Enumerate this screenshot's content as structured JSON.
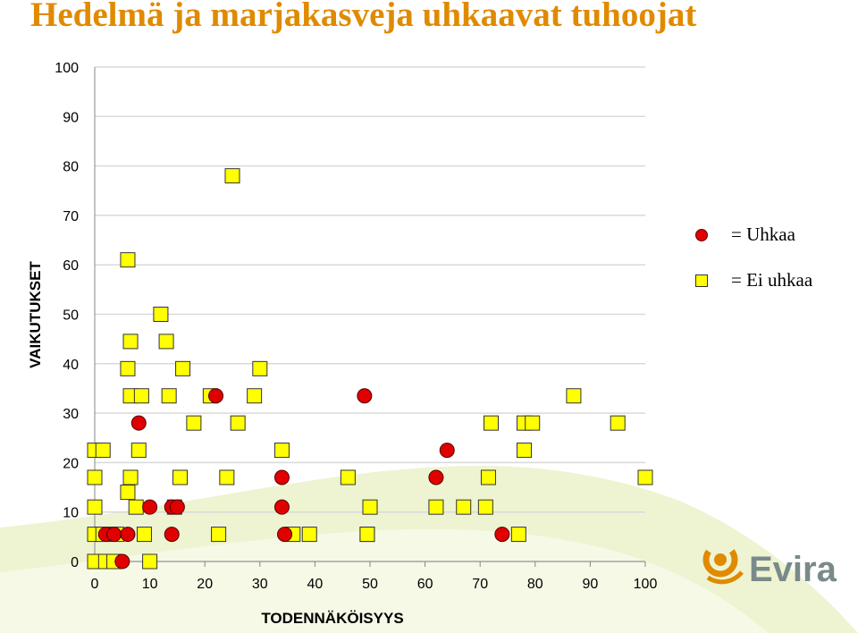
{
  "title": "Hedelmä ja marjakasveja uhkaavat tuhoojat",
  "colors": {
    "title": "#e08a00",
    "threat": "#e00000",
    "non_threat": "#ffff00",
    "grid": "#d9d9d9",
    "logo": "#e08a00"
  },
  "legend": [
    {
      "symbol": "red-circle-icon",
      "label": "= Uhkaa"
    },
    {
      "symbol": "yellow-square-icon",
      "label": "= Ei uhkaa"
    }
  ],
  "logo": {
    "text": "Evira"
  },
  "chart_data": {
    "type": "scatter",
    "title": "",
    "xlabel": "TODENNÄKÖISYYS",
    "ylabel": "VAIKUTUKSET",
    "xlim": [
      0,
      100
    ],
    "ylim": [
      0,
      100
    ],
    "xticks": [
      0,
      10,
      20,
      30,
      40,
      50,
      60,
      70,
      80,
      90,
      100
    ],
    "yticks": [
      0,
      10,
      20,
      30,
      40,
      50,
      60,
      70,
      80,
      90,
      100
    ],
    "grid": "horizontal",
    "legend_position": "top-right, outside plot",
    "series": [
      {
        "name": "Uhkaa",
        "marker": "circle",
        "points": [
          [
            2,
            5.5
          ],
          [
            3.5,
            5.5
          ],
          [
            5,
            0
          ],
          [
            6,
            5.5
          ],
          [
            8,
            28
          ],
          [
            10,
            11
          ],
          [
            14,
            5.5
          ],
          [
            14,
            11
          ],
          [
            15,
            11
          ],
          [
            22,
            33.5
          ],
          [
            34,
            17
          ],
          [
            34,
            11
          ],
          [
            34.5,
            5.5
          ],
          [
            49,
            33.5
          ],
          [
            62,
            17
          ],
          [
            64,
            22.5
          ],
          [
            74,
            5.5
          ]
        ]
      },
      {
        "name": "Ei uhkaa",
        "marker": "square",
        "points": [
          [
            0,
            22.5
          ],
          [
            1.5,
            22.5
          ],
          [
            0,
            17
          ],
          [
            0,
            11
          ],
          [
            0,
            5.5
          ],
          [
            0,
            0
          ],
          [
            2,
            0
          ],
          [
            3.5,
            0
          ],
          [
            1.5,
            5.5
          ],
          [
            4,
            5.5
          ],
          [
            6,
            61
          ],
          [
            6.5,
            44.5
          ],
          [
            6,
            39
          ],
          [
            6.5,
            33.5
          ],
          [
            8.5,
            33.5
          ],
          [
            6.5,
            17
          ],
          [
            6,
            14
          ],
          [
            7.5,
            11
          ],
          [
            8,
            22.5
          ],
          [
            9,
            5.5
          ],
          [
            10,
            0
          ],
          [
            12,
            50
          ],
          [
            13,
            44.5
          ],
          [
            16,
            39
          ],
          [
            13.5,
            33.5
          ],
          [
            15.5,
            17
          ],
          [
            14.5,
            11
          ],
          [
            18,
            28
          ],
          [
            21,
            33.5
          ],
          [
            25,
            78
          ],
          [
            24,
            17
          ],
          [
            22.5,
            5.5
          ],
          [
            26,
            28
          ],
          [
            30,
            39
          ],
          [
            29,
            33.5
          ],
          [
            34,
            22.5
          ],
          [
            36,
            5.5
          ],
          [
            39,
            5.5
          ],
          [
            46,
            17
          ],
          [
            50,
            11
          ],
          [
            49.5,
            5.5
          ],
          [
            49.5,
            5.5
          ],
          [
            62,
            11
          ],
          [
            67,
            11
          ],
          [
            71,
            11
          ],
          [
            72,
            28
          ],
          [
            71.5,
            17
          ],
          [
            77,
            5.5
          ],
          [
            78,
            28
          ],
          [
            79.5,
            28
          ],
          [
            78,
            22.5
          ],
          [
            87,
            33.5
          ],
          [
            95,
            28
          ],
          [
            100,
            17
          ]
        ]
      }
    ]
  }
}
